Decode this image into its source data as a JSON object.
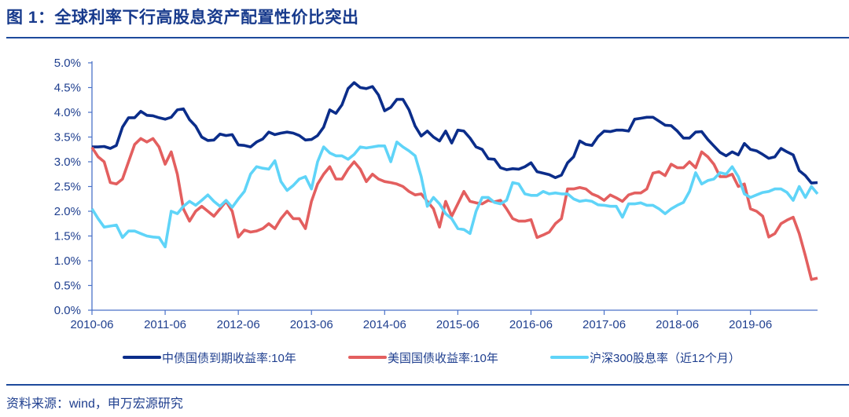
{
  "header": {
    "title": "图 1：全球利率下行高股息资产配置性价比突出"
  },
  "footer": {
    "source": "资料来源：wind，申万宏源研究"
  },
  "chart_data": {
    "type": "line",
    "title": "",
    "xlabel": "",
    "ylabel": "",
    "x_range": [
      "2010-06",
      "2020-05"
    ],
    "x_frequency": "monthly",
    "x_ticks": [
      "2010-06",
      "2011-06",
      "2012-06",
      "2013-06",
      "2014-06",
      "2015-06",
      "2016-06",
      "2017-06",
      "2018-06",
      "2019-06"
    ],
    "y_ticks": [
      "0.0%",
      "0.5%",
      "1.0%",
      "1.5%",
      "2.0%",
      "2.5%",
      "3.0%",
      "3.5%",
      "4.0%",
      "4.5%",
      "5.0%"
    ],
    "ylim": [
      0,
      5
    ],
    "y_unit": "%",
    "grid": false,
    "legend_position": "bottom",
    "series": [
      {
        "name": "中债国债到期收益率:10年",
        "color": "#0b2d8a",
        "values": [
          3.3,
          3.3,
          3.31,
          3.27,
          3.33,
          3.7,
          3.89,
          3.89,
          4.02,
          3.94,
          3.93,
          3.89,
          3.86,
          3.9,
          4.05,
          4.07,
          3.85,
          3.72,
          3.5,
          3.43,
          3.44,
          3.56,
          3.53,
          3.55,
          3.34,
          3.33,
          3.3,
          3.4,
          3.46,
          3.6,
          3.55,
          3.58,
          3.6,
          3.58,
          3.53,
          3.44,
          3.45,
          3.53,
          3.7,
          4.05,
          3.98,
          4.15,
          4.48,
          4.6,
          4.5,
          4.48,
          4.52,
          4.35,
          4.03,
          4.1,
          4.26,
          4.26,
          4.05,
          3.72,
          3.52,
          3.62,
          3.5,
          3.42,
          3.62,
          3.38,
          3.64,
          3.62,
          3.48,
          3.3,
          3.25,
          3.06,
          3.05,
          2.88,
          2.84,
          2.86,
          2.85,
          2.9,
          2.98,
          2.8,
          2.77,
          2.74,
          2.68,
          2.73,
          2.98,
          3.1,
          3.42,
          3.35,
          3.33,
          3.51,
          3.62,
          3.61,
          3.64,
          3.64,
          3.62,
          3.86,
          3.88,
          3.9,
          3.9,
          3.82,
          3.74,
          3.73,
          3.62,
          3.48,
          3.48,
          3.6,
          3.61,
          3.45,
          3.32,
          3.19,
          3.12,
          3.2,
          3.14,
          3.37,
          3.25,
          3.22,
          3.15,
          3.07,
          3.1,
          3.27,
          3.2,
          3.14,
          2.82,
          2.72,
          2.57,
          2.58
        ]
      },
      {
        "name": "美国国债收益率:10年",
        "color": "#e35f5f",
        "values": [
          3.29,
          3.1,
          3.0,
          2.58,
          2.55,
          2.65,
          3.0,
          3.35,
          3.47,
          3.4,
          3.47,
          3.3,
          2.95,
          3.2,
          2.75,
          2.05,
          1.8,
          2.0,
          2.1,
          2.0,
          1.9,
          2.05,
          2.2,
          2.0,
          1.48,
          1.62,
          1.58,
          1.6,
          1.65,
          1.75,
          1.65,
          1.85,
          2.0,
          1.85,
          1.85,
          1.65,
          2.2,
          2.55,
          2.75,
          2.9,
          2.65,
          2.65,
          2.85,
          3.0,
          2.85,
          2.6,
          2.75,
          2.65,
          2.6,
          2.58,
          2.55,
          2.5,
          2.4,
          2.33,
          2.35,
          2.2,
          2.05,
          1.68,
          2.2,
          1.9,
          2.15,
          2.4,
          2.2,
          2.17,
          2.15,
          2.22,
          2.19,
          2.22,
          2.05,
          1.85,
          1.8,
          1.8,
          1.83,
          1.47,
          1.52,
          1.58,
          1.75,
          1.85,
          2.45,
          2.45,
          2.48,
          2.45,
          2.35,
          2.3,
          2.22,
          2.33,
          2.27,
          2.2,
          2.33,
          2.37,
          2.37,
          2.45,
          2.77,
          2.8,
          2.72,
          2.95,
          2.88,
          2.88,
          3.0,
          2.88,
          3.2,
          3.1,
          2.95,
          2.7,
          2.7,
          2.75,
          2.5,
          2.55,
          2.05,
          2.0,
          1.9,
          1.48,
          1.55,
          1.75,
          1.82,
          1.88,
          1.55,
          1.1,
          0.62,
          0.65
        ]
      },
      {
        "name": "沪深300股息率（近12个月）",
        "color": "#5fd4f8",
        "values": [
          2.05,
          1.85,
          1.68,
          1.7,
          1.72,
          1.47,
          1.6,
          1.6,
          1.55,
          1.5,
          1.48,
          1.47,
          1.28,
          2.0,
          1.95,
          2.1,
          2.2,
          2.12,
          2.22,
          2.33,
          2.2,
          2.1,
          2.22,
          2.08,
          2.25,
          2.4,
          2.75,
          2.9,
          2.87,
          2.85,
          3.02,
          2.6,
          2.42,
          2.52,
          2.65,
          2.7,
          2.45,
          3.0,
          3.3,
          3.18,
          3.12,
          3.12,
          3.05,
          3.15,
          3.3,
          3.28,
          3.3,
          3.32,
          3.32,
          3.0,
          3.4,
          3.3,
          3.22,
          3.12,
          2.7,
          2.1,
          2.28,
          2.15,
          1.95,
          1.85,
          1.65,
          1.63,
          1.55,
          2.0,
          2.28,
          2.28,
          2.18,
          2.15,
          2.22,
          2.58,
          2.55,
          2.35,
          2.32,
          2.32,
          2.4,
          2.35,
          2.37,
          2.35,
          2.35,
          2.25,
          2.2,
          2.22,
          2.2,
          2.13,
          2.12,
          2.1,
          2.1,
          1.88,
          2.15,
          2.15,
          2.17,
          2.12,
          2.12,
          2.05,
          1.95,
          2.05,
          2.12,
          2.18,
          2.4,
          2.78,
          2.55,
          2.62,
          2.65,
          2.78,
          2.75,
          2.9,
          2.7,
          2.35,
          2.28,
          2.33,
          2.38,
          2.4,
          2.45,
          2.45,
          2.38,
          2.22,
          2.5,
          2.28,
          2.5,
          2.35
        ]
      }
    ]
  }
}
